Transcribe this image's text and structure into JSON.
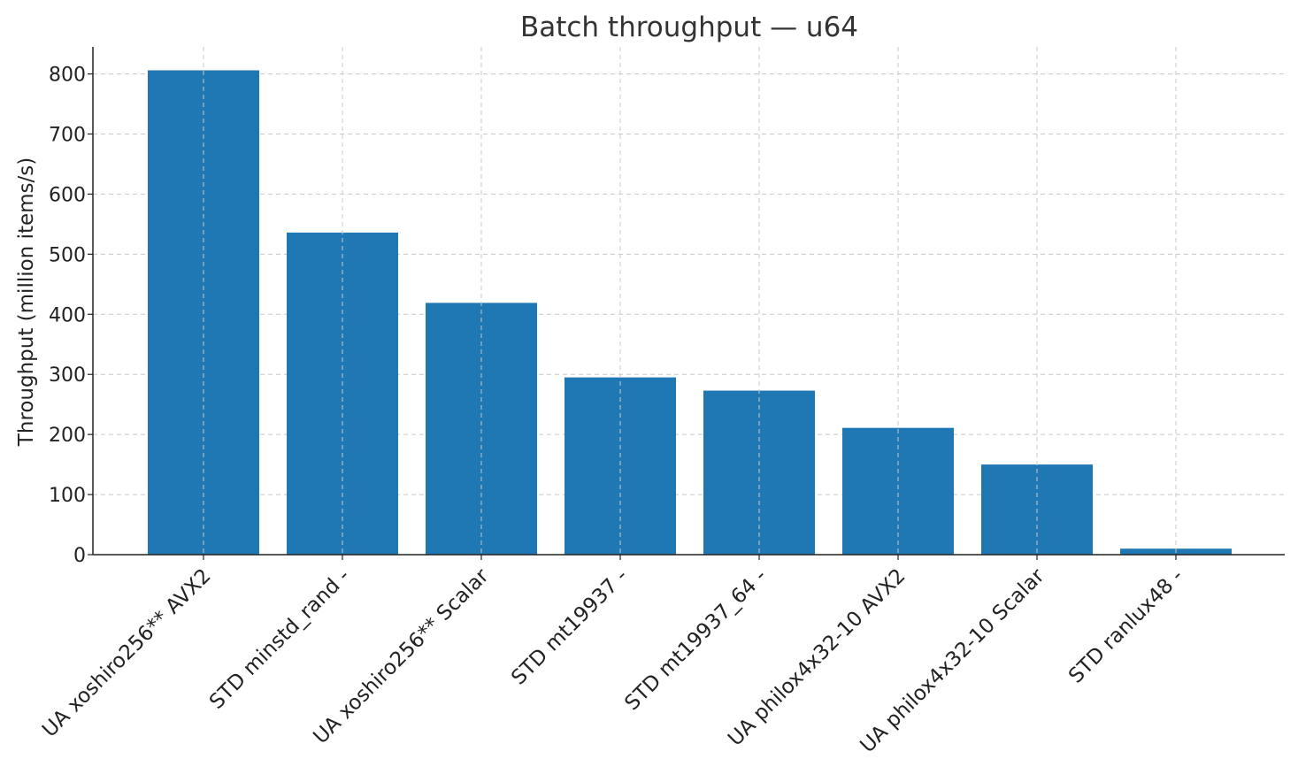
{
  "chart_data": {
    "type": "bar",
    "title": "Batch throughput — u64",
    "xlabel": "",
    "ylabel": "Throughput (million items/s)",
    "categories": [
      "UA xoshiro256** AVX2",
      "STD minstd_rand -",
      "UA xoshiro256** Scalar",
      "STD mt19937 -",
      "STD mt19937_64 -",
      "UA philox4x32-10 AVX2",
      "UA philox4x32-10 Scalar",
      "STD ranlux48 -"
    ],
    "values": [
      806,
      536,
      419,
      295,
      273,
      211,
      150,
      10
    ],
    "ylim": [
      0,
      845
    ],
    "yticks": [
      0,
      100,
      200,
      300,
      400,
      500,
      600,
      700,
      800
    ],
    "grid": true,
    "bar_color": "#1f77b4"
  }
}
